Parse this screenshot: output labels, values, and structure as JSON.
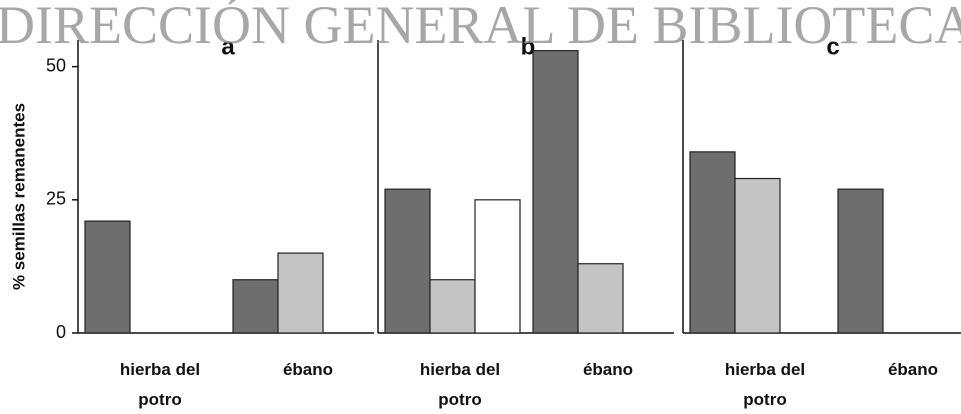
{
  "watermark": "DIRECCIÓN GENERAL DE BIBLIOTECAS",
  "chart_data": [
    {
      "type": "bar",
      "title": "a",
      "ylabel": "% semillas remanentes",
      "categories": [
        "hierba del potro",
        "ébano"
      ],
      "series": [
        {
          "color": "#6e6e6e",
          "values": [
            21,
            10
          ]
        },
        {
          "color": "#c4c4c4",
          "values": [
            null,
            15
          ]
        },
        {
          "color": "#ffffff",
          "values": [
            null,
            null
          ]
        }
      ],
      "ylim": [
        0,
        55
      ],
      "yticks": [
        0,
        25,
        50
      ]
    },
    {
      "type": "bar",
      "title": "b",
      "categories": [
        "hierba del potro",
        "ébano"
      ],
      "series": [
        {
          "color": "#6e6e6e",
          "values": [
            27,
            53
          ]
        },
        {
          "color": "#c4c4c4",
          "values": [
            10,
            13
          ]
        },
        {
          "color": "#ffffff",
          "values": [
            25,
            null
          ]
        }
      ],
      "ylim": [
        0,
        55
      ]
    },
    {
      "type": "bar",
      "title": "c",
      "categories": [
        "hierba del potro",
        "ébano"
      ],
      "series": [
        {
          "color": "#6e6e6e",
          "values": [
            34,
            27
          ]
        },
        {
          "color": "#c4c4c4",
          "values": [
            29,
            null
          ]
        },
        {
          "color": "#ffffff",
          "values": [
            null,
            null
          ]
        }
      ],
      "ylim": [
        0,
        55
      ]
    }
  ]
}
